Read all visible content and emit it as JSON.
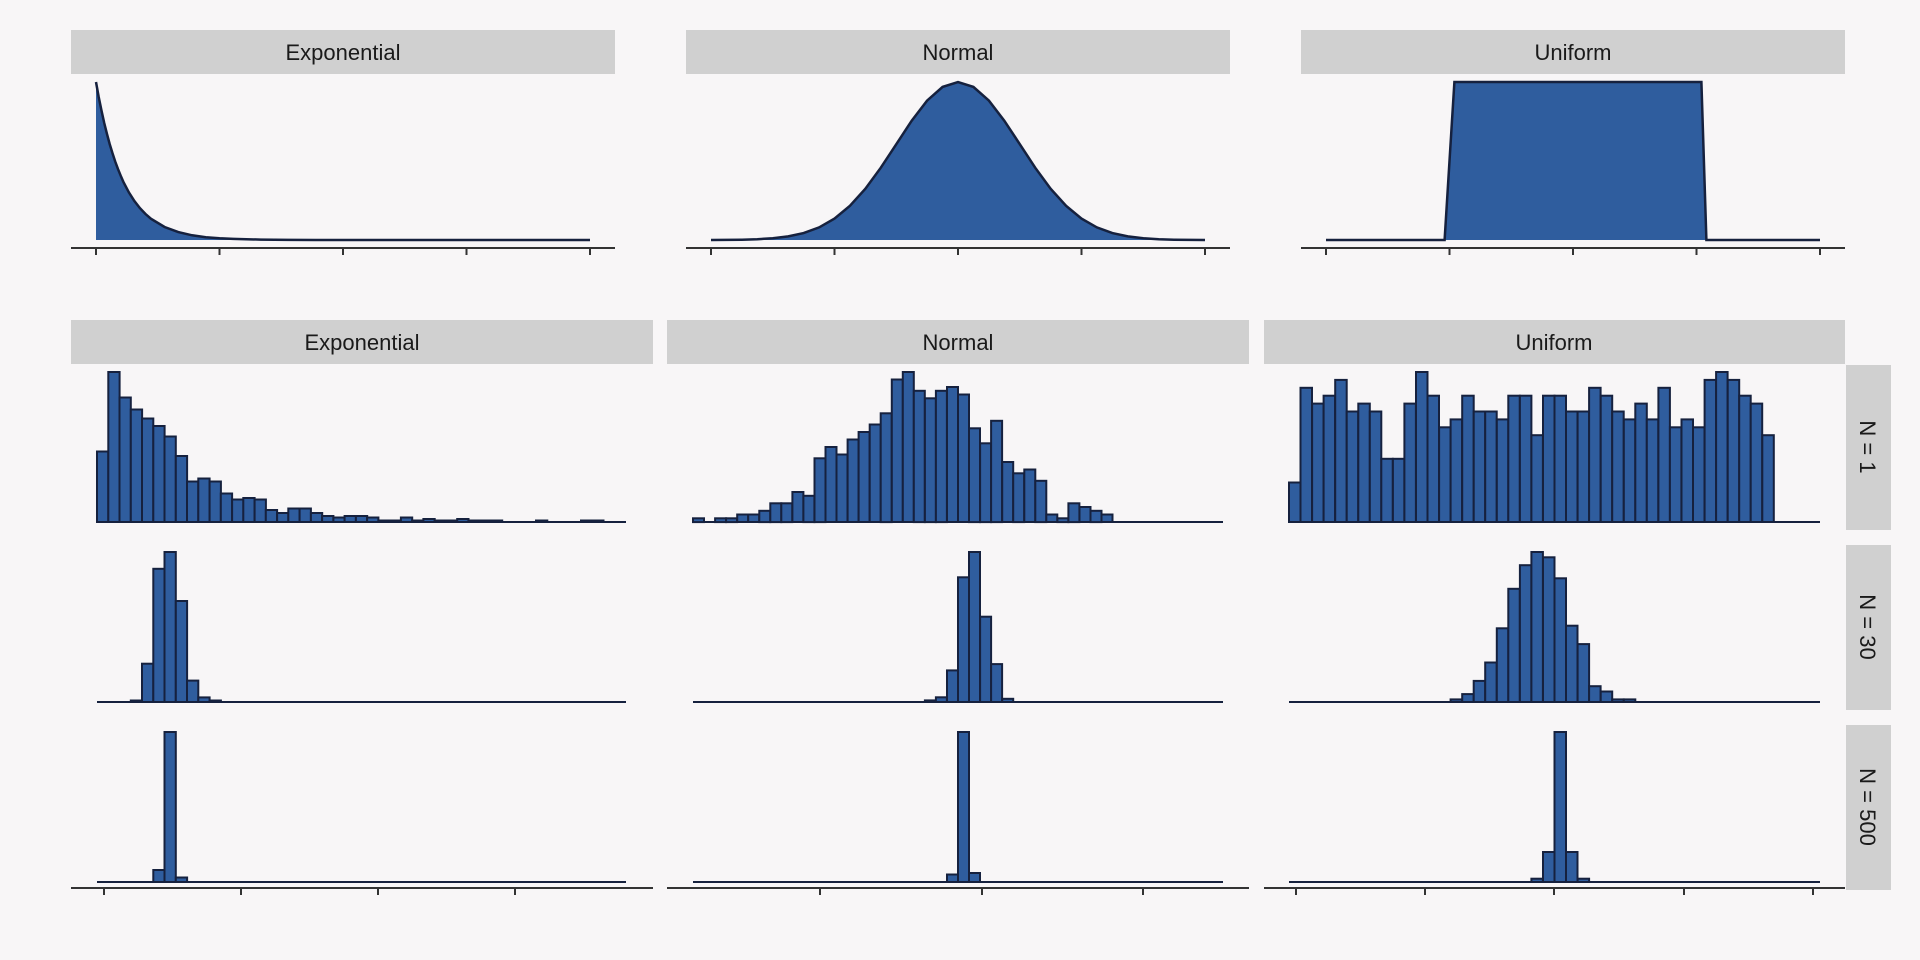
{
  "colors": {
    "background": "#f8f6f7",
    "fill": "#2f5d9e",
    "outline": "#16213e",
    "strip": "#d0d0d0",
    "axis": "#333333"
  },
  "chart_data": [
    {
      "type": "area",
      "title": "",
      "panels": [
        {
          "label": "Exponential",
          "x": [
            0,
            0.1,
            0.2,
            0.3,
            0.4,
            0.5,
            0.6,
            0.7,
            0.8,
            0.9,
            1,
            1.2,
            1.4,
            1.6,
            1.8,
            2,
            2.5,
            3,
            3.5,
            4,
            4.5,
            5,
            6,
            7,
            8,
            9,
            10,
            11,
            12,
            13,
            14,
            15,
            16,
            17,
            18
          ],
          "y": [
            1,
            0.905,
            0.819,
            0.741,
            0.67,
            0.607,
            0.549,
            0.497,
            0.449,
            0.407,
            0.368,
            0.301,
            0.247,
            0.202,
            0.165,
            0.135,
            0.082,
            0.05,
            0.03,
            0.018,
            0.011,
            0.0067,
            0.0025,
            0.0009,
            0.0003,
            0.0001,
            5e-05,
            0,
            0,
            0,
            0,
            0,
            0,
            0,
            0
          ]
        },
        {
          "label": "Normal",
          "x": [
            -4,
            -3.75,
            -3.5,
            -3.25,
            -3,
            -2.75,
            -2.5,
            -2.25,
            -2,
            -1.75,
            -1.5,
            -1.25,
            -1,
            -0.75,
            -0.5,
            -0.25,
            0,
            0.25,
            0.5,
            0.75,
            1,
            1.25,
            1.5,
            1.75,
            2,
            2.25,
            2.5,
            2.75,
            3,
            3.25,
            3.5,
            3.75,
            4
          ],
          "y": [
            0.0003,
            0.0009,
            0.0022,
            0.0051,
            0.0111,
            0.0226,
            0.0439,
            0.0796,
            0.1353,
            0.2163,
            0.3247,
            0.4578,
            0.6065,
            0.7548,
            0.8825,
            0.9692,
            1,
            0.9692,
            0.8825,
            0.7548,
            0.6065,
            0.4578,
            0.3247,
            0.2163,
            0.1353,
            0.0796,
            0.0439,
            0.0226,
            0.0111,
            0.0051,
            0.0022,
            0.0009,
            0.0003
          ]
        },
        {
          "label": "Uniform",
          "x": [
            -2,
            -1.04,
            -0.96,
            1.04,
            1.08,
            2
          ],
          "y": [
            0,
            0,
            1,
            1,
            0,
            0
          ]
        }
      ]
    },
    {
      "type": "bar",
      "title": "",
      "columns": [
        "Exponential",
        "Normal",
        "Uniform"
      ],
      "rows": [
        "N = 1",
        "N = 30",
        "N = 500"
      ],
      "panels": [
        {
          "column": "Exponential",
          "row": "N = 1",
          "values": [
            47,
            100,
            83,
            75,
            69,
            64,
            57,
            44,
            27,
            29,
            27,
            19,
            15,
            16,
            15,
            8,
            6,
            9,
            9,
            6,
            4,
            3,
            4,
            4,
            3,
            1,
            1,
            3,
            1,
            2,
            1,
            1,
            2,
            1,
            1,
            1,
            0,
            0,
            0,
            1,
            0,
            0,
            0,
            1,
            1,
            0,
            0
          ]
        },
        {
          "column": "Normal",
          "row": "N = 1",
          "values": [
            1,
            0,
            1,
            1,
            2,
            2,
            3,
            5,
            5,
            8,
            7,
            17,
            20,
            18,
            22,
            24,
            26,
            29,
            38,
            40,
            35,
            33,
            35,
            36,
            34,
            25,
            21,
            27,
            16,
            13,
            14,
            11,
            2,
            1,
            5,
            4,
            3,
            2
          ]
        },
        {
          "column": "Uniform",
          "row": "N = 1",
          "values": [
            5,
            17,
            15,
            16,
            18,
            14,
            15,
            14,
            8,
            8,
            15,
            19,
            16,
            12,
            13,
            16,
            14,
            14,
            13,
            16,
            16,
            11,
            16,
            16,
            14,
            14,
            17,
            16,
            14,
            13,
            15,
            13,
            17,
            12,
            13,
            12,
            18,
            19,
            18,
            16,
            15,
            11
          ]
        },
        {
          "column": "Exponential",
          "row": "N = 30",
          "values": [
            0,
            0,
            0,
            1,
            25,
            87,
            98,
            66,
            14,
            3,
            1
          ]
        },
        {
          "column": "Normal",
          "row": "N = 30",
          "values": [
            0,
            0,
            0,
            1,
            3,
            20,
            79,
            95,
            54,
            24,
            2,
            0
          ]
        },
        {
          "column": "Uniform",
          "row": "N = 30",
          "values": [
            0,
            0,
            0,
            0,
            0,
            0,
            0,
            0,
            0,
            0,
            0,
            0,
            0,
            0,
            1,
            3,
            8,
            15,
            28,
            43,
            52,
            57,
            55,
            47,
            29,
            22,
            6,
            4,
            1,
            1
          ]
        },
        {
          "column": "Exponential",
          "row": "N = 500",
          "values": [
            0,
            8,
            100,
            3
          ]
        },
        {
          "column": "Normal",
          "row": "N = 500",
          "values": [
            0,
            5,
            100,
            6
          ]
        },
        {
          "column": "Uniform",
          "row": "N = 500",
          "values": [
            0,
            2,
            18,
            90,
            18,
            2
          ]
        }
      ]
    }
  ]
}
